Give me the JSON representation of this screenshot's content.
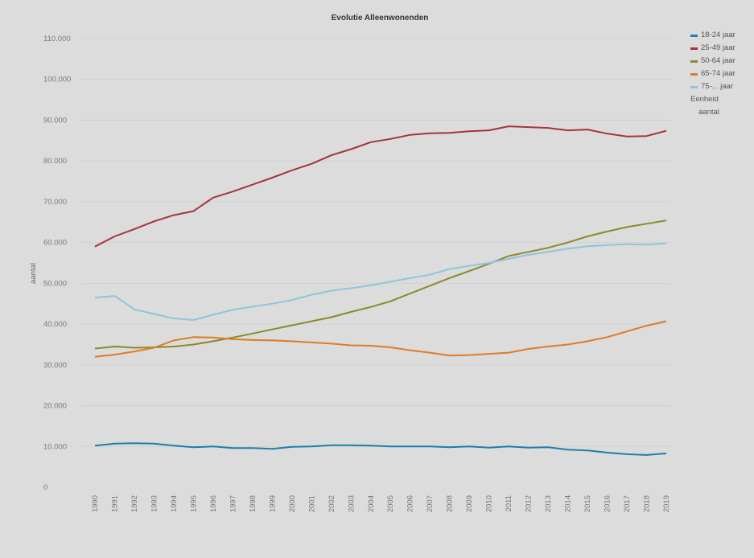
{
  "chart_data": {
    "type": "line",
    "title": "Evolutie Alleenwonenden",
    "ylabel": "aantal",
    "xlabel": "",
    "ylim": [
      0,
      110000
    ],
    "yticks": [
      "0",
      "10.000",
      "20.000",
      "30.000",
      "40.000",
      "50.000",
      "60.000",
      "70.000",
      "80.000",
      "90.000",
      "100.000",
      "110.000"
    ],
    "grid": true,
    "legend_position": "right",
    "categories": [
      "1990",
      "1991",
      "1992",
      "1993",
      "1994",
      "1995",
      "1996",
      "1997",
      "1998",
      "1999",
      "2000",
      "2001",
      "2002",
      "2003",
      "2004",
      "2005",
      "2006",
      "2007",
      "2008",
      "2009",
      "2010",
      "2011",
      "2012",
      "2013",
      "2014",
      "2015",
      "2016",
      "2017",
      "2018",
      "2019"
    ],
    "series": [
      {
        "name": "18-24 jaar",
        "color": "#1f7fa8",
        "values": [
          10200,
          10700,
          10800,
          10700,
          10200,
          9800,
          10000,
          9600,
          9600,
          9400,
          9900,
          10000,
          10300,
          10300,
          10200,
          10000,
          10000,
          10000,
          9800,
          10000,
          9700,
          10000,
          9700,
          9800,
          9200,
          9000,
          8500,
          8100,
          7900,
          8300
        ]
      },
      {
        "name": "25-49 jaar",
        "color": "#a5343c",
        "values": [
          59000,
          61500,
          63300,
          65200,
          66700,
          67700,
          71000,
          72500,
          74200,
          75900,
          77700,
          79300,
          81400,
          82900,
          84600,
          85400,
          86400,
          86800,
          86900,
          87300,
          87500,
          88500,
          88300,
          88100,
          87500,
          87700,
          86700,
          86000,
          86100,
          87400
        ]
      },
      {
        "name": "50-64 jaar",
        "color": "#8a8a2a",
        "values": [
          34000,
          34500,
          34200,
          34300,
          34500,
          35000,
          35800,
          36700,
          37700,
          38700,
          39700,
          40700,
          41700,
          43000,
          44200,
          45600,
          47500,
          49400,
          51300,
          53000,
          54800,
          56700,
          57700,
          58700,
          60000,
          61500,
          62700,
          63800,
          64600,
          65400
        ]
      },
      {
        "name": "65-74 jaar",
        "color": "#e07b26",
        "values": [
          32000,
          32500,
          33300,
          34200,
          36000,
          36800,
          36700,
          36300,
          36100,
          36000,
          35800,
          35500,
          35200,
          34800,
          34700,
          34300,
          33600,
          33000,
          32300,
          32400,
          32700,
          33000,
          33900,
          34500,
          35000,
          35800,
          36800,
          38200,
          39600,
          40700
        ]
      },
      {
        "name": "75-... jaar",
        "color": "#8ec5db",
        "values": [
          46500,
          46900,
          43600,
          42500,
          41400,
          41000,
          42300,
          43500,
          44300,
          45000,
          45900,
          47200,
          48200,
          48800,
          49500,
          50400,
          51300,
          52100,
          53500,
          54300,
          55000,
          56000,
          57000,
          57700,
          58500,
          59100,
          59400,
          59600,
          59500,
          59800
        ]
      }
    ],
    "legend_extra": {
      "unit_label": "Eenheid",
      "unit_value": "aantal"
    }
  }
}
